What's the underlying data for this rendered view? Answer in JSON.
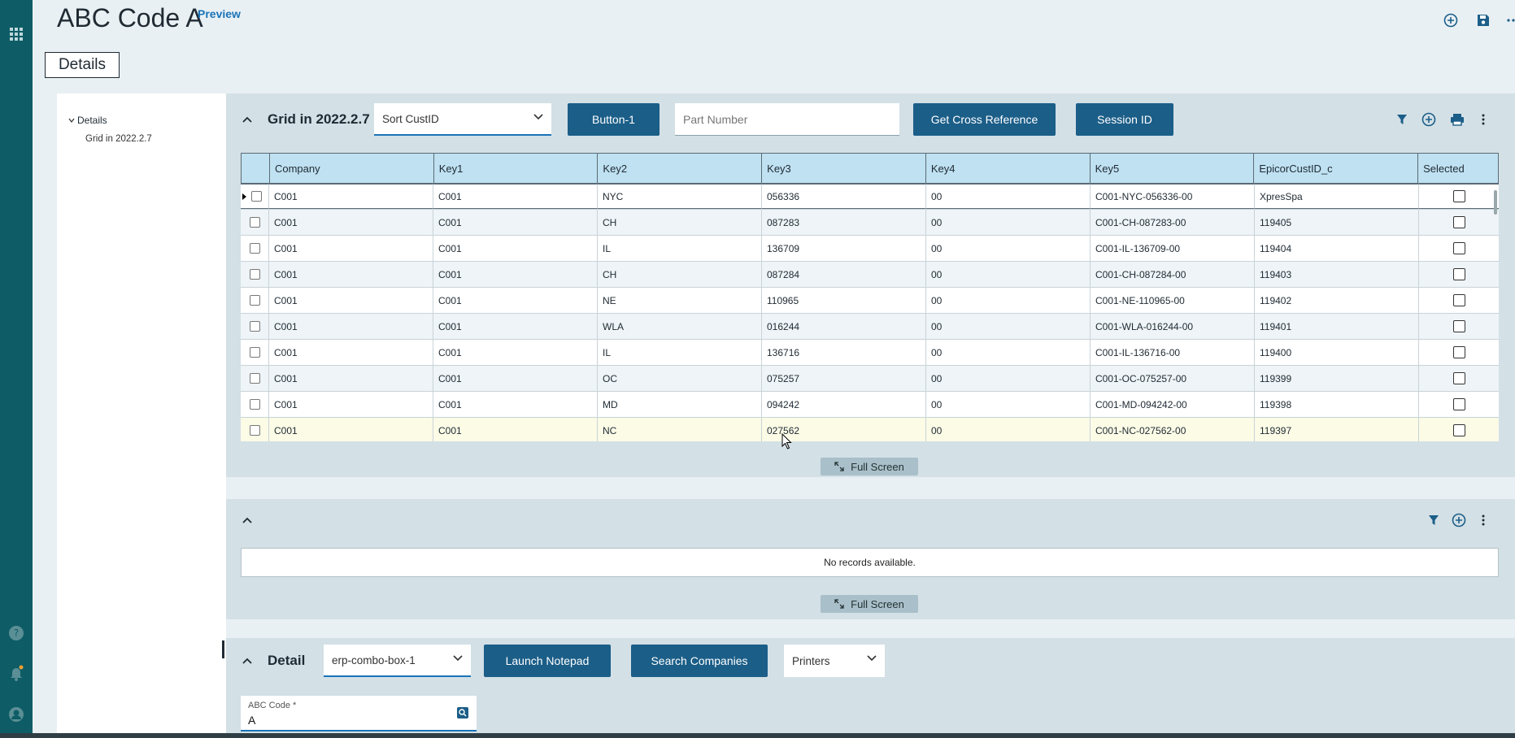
{
  "app": {
    "title": "ABC Code A",
    "preview_label": "Preview",
    "section_tab": "Details"
  },
  "tree": {
    "root": "Details",
    "child": "Grid in 2022.2.7"
  },
  "grid_panel": {
    "title": "Grid in 2022.2.7",
    "sort_select": "Sort CustID",
    "button1": "Button-1",
    "part_number_placeholder": "Part Number",
    "cross_ref_button": "Get Cross Reference",
    "session_button": "Session ID",
    "columns": [
      "Company",
      "Key1",
      "Key2",
      "Key3",
      "Key4",
      "Key5",
      "EpicorCustID_c",
      "Selected"
    ],
    "rows": [
      [
        "C001",
        "C001",
        "NYC",
        "056336",
        "00",
        "C001-NYC-056336-00",
        "XpresSpa"
      ],
      [
        "C001",
        "C001",
        "CH",
        "087283",
        "00",
        "C001-CH-087283-00",
        "119405"
      ],
      [
        "C001",
        "C001",
        "IL",
        "136709",
        "00",
        "C001-IL-136709-00",
        "119404"
      ],
      [
        "C001",
        "C001",
        "CH",
        "087284",
        "00",
        "C001-CH-087284-00",
        "119403"
      ],
      [
        "C001",
        "C001",
        "NE",
        "110965",
        "00",
        "C001-NE-110965-00",
        "119402"
      ],
      [
        "C001",
        "C001",
        "WLA",
        "016244",
        "00",
        "C001-WLA-016244-00",
        "119401"
      ],
      [
        "C001",
        "C001",
        "IL",
        "136716",
        "00",
        "C001-IL-136716-00",
        "119400"
      ],
      [
        "C001",
        "C001",
        "OC",
        "075257",
        "00",
        "C001-OC-075257-00",
        "119399"
      ],
      [
        "C001",
        "C001",
        "MD",
        "094242",
        "00",
        "C001-MD-094242-00",
        "119398"
      ],
      [
        "C001",
        "C001",
        "NC",
        "027562",
        "00",
        "C001-NC-027562-00",
        "119397"
      ]
    ],
    "full_screen": "Full Screen"
  },
  "second_panel": {
    "no_records": "No records available.",
    "full_screen": "Full Screen"
  },
  "detail_panel": {
    "title": "Detail",
    "combo": "erp-combo-box-1",
    "launch_notepad": "Launch Notepad",
    "search_companies": "Search Companies",
    "printers": "Printers",
    "abc_label": "ABC Code *",
    "abc_value": "A"
  },
  "colors": {
    "rail": "#0e5c66",
    "button": "#1b5e88",
    "header": "#bfe1f2",
    "accent": "#1a73b8"
  }
}
